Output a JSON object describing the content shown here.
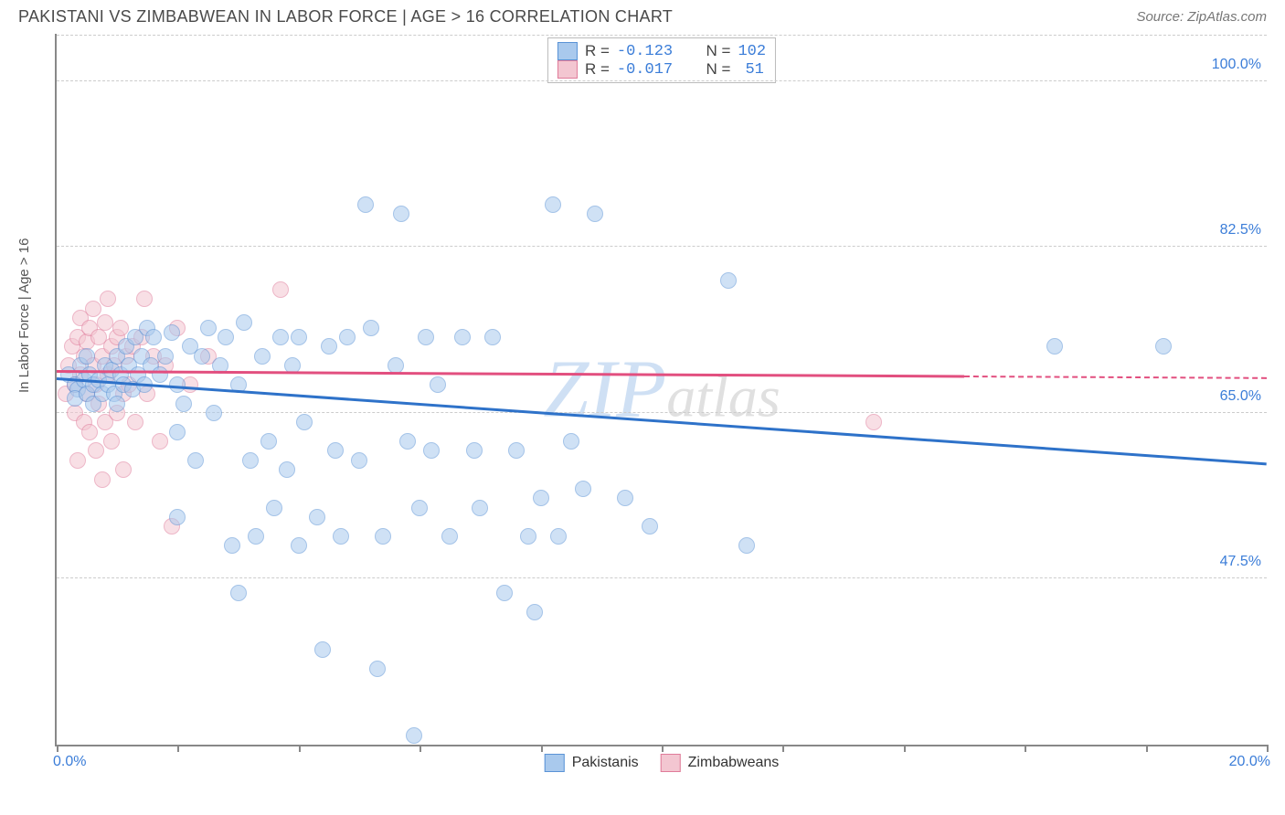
{
  "title": "PAKISTANI VS ZIMBABWEAN IN LABOR FORCE | AGE > 16 CORRELATION CHART",
  "source": "Source: ZipAtlas.com",
  "ylabel": "In Labor Force | Age > 16",
  "watermark_main": "ZIP",
  "watermark_sub": "atlas",
  "chart": {
    "type": "scatter",
    "xlim": [
      0.0,
      20.0
    ],
    "ylim": [
      30.0,
      105.0
    ],
    "xlim_labels": [
      "0.0%",
      "20.0%"
    ],
    "yticks": [
      47.5,
      65.0,
      82.5,
      100.0
    ],
    "ytick_labels": [
      "47.5%",
      "65.0%",
      "82.5%",
      "100.0%"
    ],
    "xticks": [
      0.0,
      2.0,
      4.0,
      6.0,
      8.0,
      10.0,
      12.0,
      14.0,
      16.0,
      18.0,
      20.0
    ],
    "grid_color": "#cccccc",
    "axis_color": "#888888",
    "background_color": "#ffffff",
    "point_radius": 9,
    "point_border_width": 1.5,
    "point_opacity": 0.55,
    "line_width": 2.5
  },
  "series": [
    {
      "name": "Pakistanis",
      "fill_color": "#a9c9ed",
      "border_color": "#5a93d6",
      "r_value": "-0.123",
      "n_value": "102",
      "trend": {
        "y_at_xmin": 68.5,
        "y_at_xmax": 59.5,
        "solid_until_x": 20.0,
        "color": "#2e72c9"
      },
      "points": [
        [
          0.2,
          69
        ],
        [
          0.3,
          68
        ],
        [
          0.35,
          67.5
        ],
        [
          0.3,
          66.5
        ],
        [
          0.4,
          70
        ],
        [
          0.45,
          68.5
        ],
        [
          0.5,
          67
        ],
        [
          0.55,
          69
        ],
        [
          0.6,
          68
        ],
        [
          0.6,
          66
        ],
        [
          0.5,
          71
        ],
        [
          0.7,
          68.5
        ],
        [
          0.75,
          67
        ],
        [
          0.8,
          70
        ],
        [
          0.85,
          68
        ],
        [
          0.9,
          69.5
        ],
        [
          0.95,
          67
        ],
        [
          1.0,
          71
        ],
        [
          1.0,
          66
        ],
        [
          1.05,
          69
        ],
        [
          1.1,
          68
        ],
        [
          1.15,
          72
        ],
        [
          1.2,
          70
        ],
        [
          1.25,
          67.5
        ],
        [
          1.3,
          73
        ],
        [
          1.35,
          69
        ],
        [
          1.4,
          71
        ],
        [
          1.45,
          68
        ],
        [
          1.5,
          74
        ],
        [
          1.55,
          70
        ],
        [
          1.6,
          73
        ],
        [
          1.7,
          69
        ],
        [
          1.8,
          71
        ],
        [
          1.9,
          73.5
        ],
        [
          2.0,
          68
        ],
        [
          2.0,
          54
        ],
        [
          2.0,
          63
        ],
        [
          2.1,
          66
        ],
        [
          2.2,
          72
        ],
        [
          2.3,
          60
        ],
        [
          2.4,
          71
        ],
        [
          2.5,
          74
        ],
        [
          2.6,
          65
        ],
        [
          2.7,
          70
        ],
        [
          2.8,
          73
        ],
        [
          2.9,
          51
        ],
        [
          3.0,
          68
        ],
        [
          3.0,
          46
        ],
        [
          3.1,
          74.5
        ],
        [
          3.2,
          60
        ],
        [
          3.3,
          52
        ],
        [
          3.4,
          71
        ],
        [
          3.5,
          62
        ],
        [
          3.6,
          55
        ],
        [
          3.7,
          73
        ],
        [
          3.8,
          59
        ],
        [
          3.9,
          70
        ],
        [
          4.0,
          51
        ],
        [
          4.0,
          73
        ],
        [
          4.1,
          64
        ],
        [
          4.3,
          54
        ],
        [
          4.4,
          40
        ],
        [
          4.5,
          72
        ],
        [
          4.6,
          61
        ],
        [
          4.7,
          52
        ],
        [
          4.8,
          73
        ],
        [
          5.0,
          60
        ],
        [
          5.1,
          87
        ],
        [
          5.2,
          74
        ],
        [
          5.3,
          38
        ],
        [
          5.4,
          52
        ],
        [
          5.6,
          70
        ],
        [
          5.7,
          86
        ],
        [
          5.8,
          62
        ],
        [
          5.9,
          31
        ],
        [
          6.0,
          55
        ],
        [
          6.1,
          73
        ],
        [
          6.2,
          61
        ],
        [
          6.3,
          68
        ],
        [
          6.5,
          52
        ],
        [
          6.7,
          73
        ],
        [
          6.9,
          61
        ],
        [
          7.0,
          55
        ],
        [
          7.2,
          73
        ],
        [
          7.4,
          46
        ],
        [
          7.6,
          61
        ],
        [
          7.8,
          52
        ],
        [
          7.9,
          44
        ],
        [
          8.0,
          56
        ],
        [
          8.2,
          87
        ],
        [
          8.3,
          52
        ],
        [
          8.5,
          62
        ],
        [
          8.7,
          57
        ],
        [
          8.9,
          86
        ],
        [
          9.4,
          56
        ],
        [
          9.8,
          53
        ],
        [
          11.1,
          79
        ],
        [
          11.4,
          51
        ],
        [
          16.5,
          72
        ],
        [
          18.3,
          72
        ]
      ]
    },
    {
      "name": "Zimbabweans",
      "fill_color": "#f3c6d1",
      "border_color": "#e07b9a",
      "r_value": "-0.017",
      "n_value": "51",
      "trend": {
        "y_at_xmin": 69.3,
        "y_at_xmax": 68.6,
        "solid_until_x": 15.0,
        "color": "#e24f7f"
      },
      "points": [
        [
          0.15,
          67
        ],
        [
          0.2,
          70
        ],
        [
          0.25,
          72
        ],
        [
          0.3,
          68
        ],
        [
          0.3,
          65
        ],
        [
          0.35,
          73
        ],
        [
          0.35,
          60
        ],
        [
          0.4,
          69
        ],
        [
          0.4,
          75
        ],
        [
          0.45,
          71
        ],
        [
          0.45,
          64
        ],
        [
          0.5,
          72.5
        ],
        [
          0.5,
          67
        ],
        [
          0.55,
          74
        ],
        [
          0.55,
          63
        ],
        [
          0.6,
          70
        ],
        [
          0.6,
          76
        ],
        [
          0.65,
          68
        ],
        [
          0.65,
          61
        ],
        [
          0.7,
          73
        ],
        [
          0.7,
          66
        ],
        [
          0.75,
          71
        ],
        [
          0.75,
          58
        ],
        [
          0.8,
          74.5
        ],
        [
          0.8,
          64
        ],
        [
          0.85,
          69
        ],
        [
          0.85,
          77
        ],
        [
          0.9,
          72
        ],
        [
          0.9,
          62
        ],
        [
          0.95,
          70
        ],
        [
          1.0,
          73
        ],
        [
          1.0,
          65
        ],
        [
          1.05,
          74
        ],
        [
          1.1,
          67
        ],
        [
          1.1,
          59
        ],
        [
          1.15,
          71
        ],
        [
          1.2,
          68
        ],
        [
          1.25,
          72
        ],
        [
          1.3,
          64
        ],
        [
          1.4,
          73
        ],
        [
          1.45,
          77
        ],
        [
          1.5,
          67
        ],
        [
          1.6,
          71
        ],
        [
          1.7,
          62
        ],
        [
          1.8,
          70
        ],
        [
          1.9,
          53
        ],
        [
          2.0,
          74
        ],
        [
          2.2,
          68
        ],
        [
          2.5,
          71
        ],
        [
          3.7,
          78
        ],
        [
          13.5,
          64
        ]
      ]
    }
  ],
  "stats_legend": {
    "r_label": "R =",
    "n_label": "N ="
  },
  "bottom_legend": {
    "label1": "Pakistanis",
    "label2": "Zimbabweans"
  }
}
